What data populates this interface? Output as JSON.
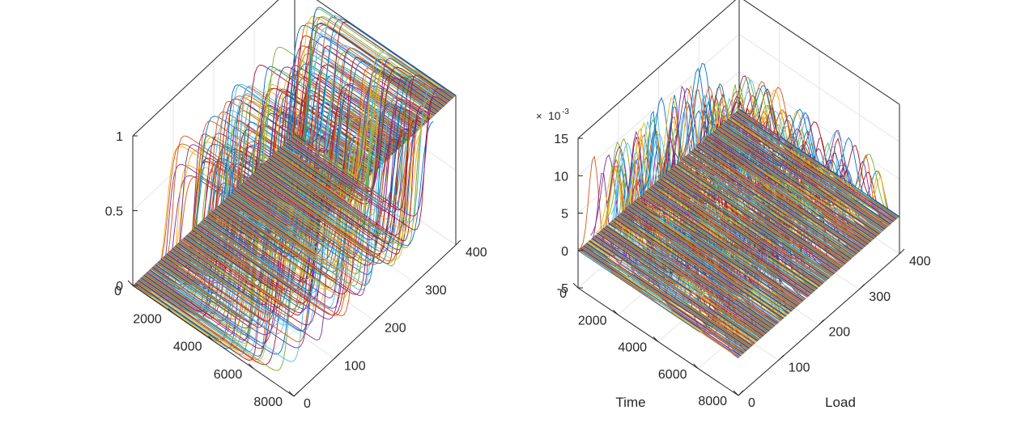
{
  "chart_data": [
    {
      "type": "surface-3d-lines",
      "description_of_data": "Family of sigmoid (cumulative) curves along time axis, one per load value",
      "xlabel": "",
      "ylabel": "",
      "zlabel": "",
      "time_range": [
        0,
        8000
      ],
      "load_range": [
        0,
        400
      ],
      "zlim": [
        0,
        1
      ],
      "time_ticks": [
        "0",
        "2000",
        "4000",
        "6000",
        "8000"
      ],
      "load_ticks": [
        "0",
        "100",
        "200",
        "300",
        "400"
      ],
      "z_ticks": [
        "0",
        "0.5",
        "1"
      ],
      "grid": true,
      "n_curves": 400,
      "transition_time_range": [
        500,
        7700
      ]
    },
    {
      "type": "surface-3d-lines",
      "description_of_data": "Family of bell-shaped (density) curves along time axis, one per load value",
      "xlabel": "Time",
      "ylabel": "Load",
      "zlabel": "",
      "time_range": [
        0,
        8000
      ],
      "load_range": [
        0,
        400
      ],
      "zlim": [
        -0.005,
        0.015
      ],
      "z_exponent_label": "10",
      "z_exponent_power": "-3",
      "time_ticks": [
        "0",
        "2000",
        "4000",
        "6000",
        "8000"
      ],
      "load_ticks": [
        "0",
        "100",
        "200",
        "300",
        "400"
      ],
      "z_ticks": [
        "-5",
        "0",
        "5",
        "10",
        "15"
      ],
      "grid": true,
      "n_curves": 400,
      "peak_height_range": [
        0.01,
        0.0145
      ]
    }
  ],
  "colors": [
    "#0072BD",
    "#D95319",
    "#EDB120",
    "#7E2F8E",
    "#77AC30",
    "#4DBEEE",
    "#A2142F"
  ]
}
